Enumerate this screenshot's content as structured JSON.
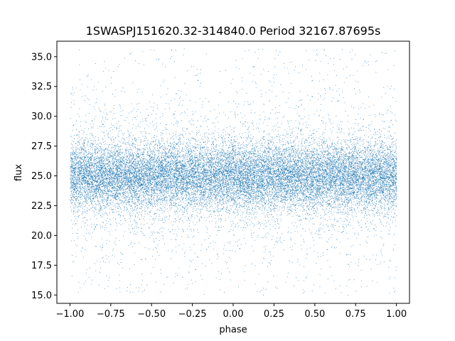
{
  "chart_data": {
    "type": "scatter",
    "title": "1SWASPJ151620.32-314840.0 Period 32167.87695s",
    "xlabel": "phase",
    "ylabel": "flux",
    "xlim": [
      -1.08,
      1.08
    ],
    "ylim": [
      14.3,
      36.3
    ],
    "x_ticks": [
      -1.0,
      -0.75,
      -0.5,
      -0.25,
      0.0,
      0.25,
      0.5,
      0.75,
      1.0
    ],
    "x_tick_labels": [
      "−1.00",
      "−0.75",
      "−0.50",
      "−0.25",
      "0.00",
      "0.25",
      "0.50",
      "0.75",
      "1.00"
    ],
    "y_ticks": [
      15.0,
      17.5,
      20.0,
      22.5,
      25.0,
      27.5,
      30.0,
      32.5,
      35.0
    ],
    "y_tick_labels": [
      "15.0",
      "17.5",
      "20.0",
      "22.5",
      "25.0",
      "27.5",
      "30.0",
      "32.5",
      "35.0"
    ],
    "grid": false,
    "marker_color": "#1f77b4",
    "series": [
      {
        "x_range": [
          -1.0,
          1.0
        ],
        "y_center": 25.0,
        "y_dense_band": [
          22.5,
          28.0
        ],
        "y_full_range": [
          15.0,
          35.7
        ],
        "approx_points": 60000
      }
    ]
  }
}
